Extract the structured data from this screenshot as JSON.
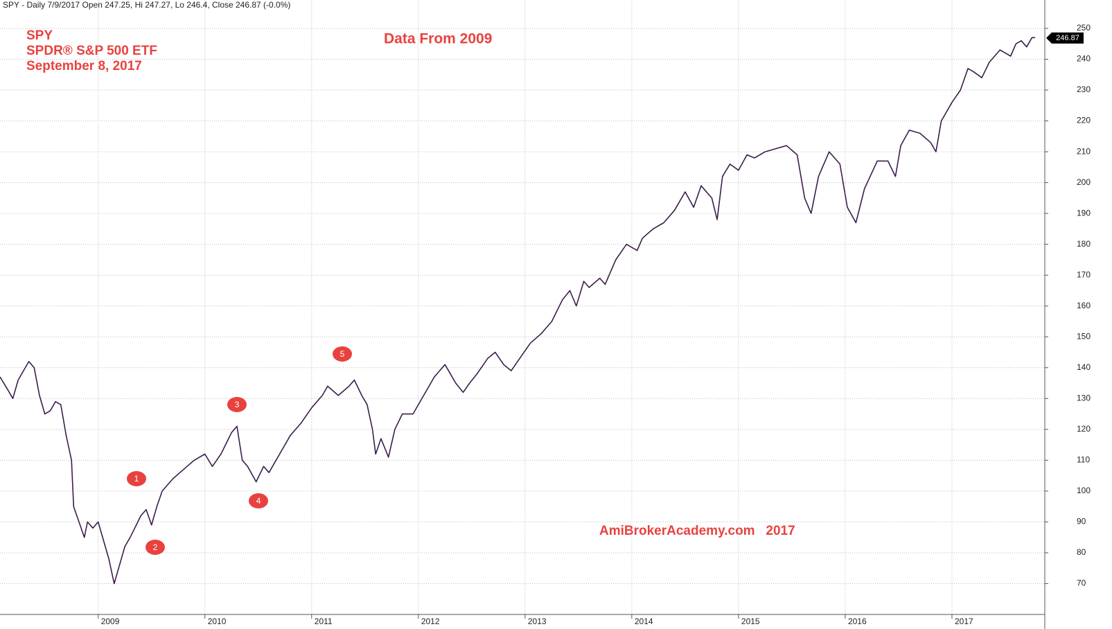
{
  "header": "SPY - Daily 7/9/2017 Open 247.25, Hi 247.27, Lo 246.4, Close 246.87 (-0.0%)",
  "chart_data": {
    "type": "line",
    "annotations": [
      "SPY",
      "SPDR® S&P 500 ETF",
      "September 8, 2017"
    ],
    "center_note": "Data From 2009",
    "watermark": "AmiBrokerAcademy.com   2017",
    "wave_labels": [
      "1",
      "2",
      "3",
      "4",
      "5"
    ],
    "last_value": 246.87,
    "x": [
      2008.08,
      2008.15,
      2008.2,
      2008.25,
      2008.35,
      2008.4,
      2008.45,
      2008.5,
      2008.55,
      2008.6,
      2008.65,
      2008.7,
      2008.75,
      2008.77,
      2008.82,
      2008.87,
      2008.9,
      2008.95,
      2009.0,
      2009.05,
      2009.1,
      2009.15,
      2009.2,
      2009.25,
      2009.3,
      2009.4,
      2009.45,
      2009.5,
      2009.55,
      2009.6,
      2009.7,
      2009.8,
      2009.9,
      2010.0,
      2010.07,
      2010.15,
      2010.25,
      2010.3,
      2010.35,
      2010.4,
      2010.48,
      2010.55,
      2010.6,
      2010.7,
      2010.8,
      2010.9,
      2011.0,
      2011.1,
      2011.15,
      2011.25,
      2011.35,
      2011.4,
      2011.47,
      2011.52,
      2011.57,
      2011.6,
      2011.65,
      2011.72,
      2011.78,
      2011.85,
      2011.95,
      2012.05,
      2012.15,
      2012.25,
      2012.35,
      2012.42,
      2012.48,
      2012.55,
      2012.65,
      2012.72,
      2012.8,
      2012.87,
      2012.95,
      2013.05,
      2013.15,
      2013.25,
      2013.35,
      2013.42,
      2013.48,
      2013.55,
      2013.6,
      2013.7,
      2013.75,
      2013.85,
      2013.95,
      2014.05,
      2014.1,
      2014.2,
      2014.3,
      2014.4,
      2014.5,
      2014.58,
      2014.65,
      2014.75,
      2014.8,
      2014.85,
      2014.92,
      2015.0,
      2015.08,
      2015.15,
      2015.25,
      2015.35,
      2015.45,
      2015.55,
      2015.62,
      2015.68,
      2015.75,
      2015.85,
      2015.95,
      2016.02,
      2016.1,
      2016.18,
      2016.3,
      2016.4,
      2016.47,
      2016.52,
      2016.6,
      2016.7,
      2016.8,
      2016.85,
      2016.9,
      2017.0,
      2017.08,
      2017.15,
      2017.2,
      2017.28,
      2017.35,
      2017.45,
      2017.55,
      2017.6,
      2017.65,
      2017.7,
      2017.75,
      2017.78
    ],
    "series": [
      {
        "color": "#3b1d4a",
        "values": [
          137,
          133,
          130,
          136,
          142,
          140,
          131,
          125,
          126,
          129,
          128,
          118,
          110,
          95,
          90,
          85,
          90,
          88,
          90,
          84,
          78,
          70,
          76,
          82,
          85,
          92,
          94,
          89,
          95,
          100,
          104,
          107,
          110,
          112,
          108,
          112,
          119,
          121,
          110,
          108,
          103,
          108,
          106,
          112,
          118,
          122,
          127,
          131,
          134,
          131,
          134,
          136,
          131,
          128,
          120,
          112,
          117,
          111,
          120,
          125,
          125,
          131,
          137,
          141,
          135,
          132,
          135,
          138,
          143,
          145,
          141,
          139,
          143,
          148,
          151,
          155,
          162,
          165,
          160,
          168,
          166,
          169,
          167,
          175,
          180,
          178,
          182,
          185,
          187,
          191,
          197,
          192,
          199,
          195,
          188,
          202,
          206,
          204,
          209,
          208,
          210,
          211,
          212,
          209,
          195,
          190,
          202,
          210,
          206,
          192,
          187,
          198,
          207,
          207,
          202,
          212,
          217,
          216,
          213,
          210,
          220,
          226,
          230,
          237,
          236,
          234,
          239,
          243,
          241,
          245,
          246,
          244,
          247,
          247
        ]
      }
    ],
    "xlim": [
      2008.08,
      2017.87
    ],
    "ylim": [
      60,
      259.2
    ],
    "xticks": [
      2009,
      2010,
      2011,
      2012,
      2013,
      2014,
      2015,
      2016,
      2017
    ],
    "yticks": [
      70,
      80,
      90,
      100,
      110,
      120,
      130,
      140,
      150,
      160,
      170,
      180,
      190,
      200,
      210,
      220,
      230,
      240,
      250
    ],
    "grid": true
  }
}
